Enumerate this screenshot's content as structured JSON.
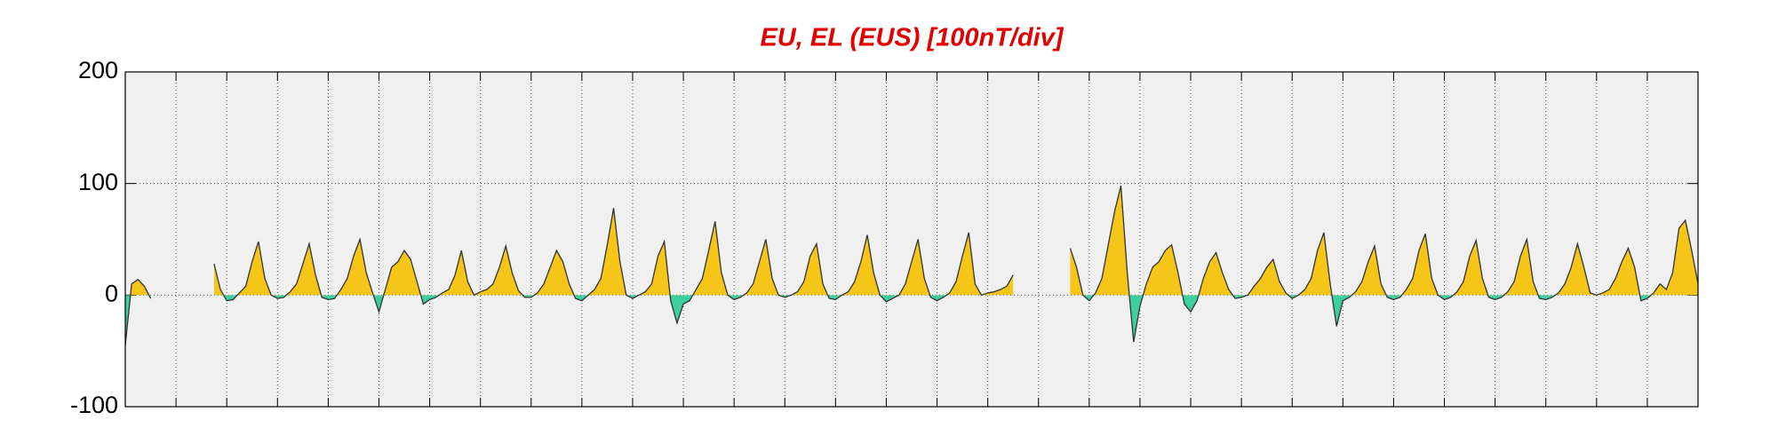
{
  "chart_data": {
    "type": "area-line",
    "title": "EU, EL (EUS)  [100nT/div]",
    "x": [
      0,
      0.125,
      0.25,
      0.375,
      0.5,
      0.625,
      0.75,
      0.875,
      1,
      1.125,
      1.25,
      1.375,
      1.5,
      1.625,
      1.75,
      1.875,
      2,
      2.125,
      2.25,
      2.375,
      2.5,
      2.625,
      2.75,
      2.875,
      3,
      3.125,
      3.25,
      3.375,
      3.5,
      3.625,
      3.75,
      3.875,
      4,
      4.125,
      4.25,
      4.375,
      4.5,
      4.625,
      4.75,
      4.875,
      5,
      5.125,
      5.25,
      5.375,
      5.5,
      5.625,
      5.75,
      5.875,
      6,
      6.125,
      6.25,
      6.375,
      6.5,
      6.625,
      6.75,
      6.875,
      7,
      7.125,
      7.25,
      7.375,
      7.5,
      7.625,
      7.75,
      7.875,
      8,
      8.125,
      8.25,
      8.375,
      8.5,
      8.625,
      8.75,
      8.875,
      9,
      9.125,
      9.25,
      9.375,
      9.5,
      9.625,
      9.75,
      9.875,
      10,
      10.125,
      10.25,
      10.375,
      10.5,
      10.625,
      10.75,
      10.875,
      11,
      11.125,
      11.25,
      11.375,
      11.5,
      11.625,
      11.75,
      11.875,
      12,
      12.125,
      12.25,
      12.375,
      12.5,
      12.625,
      12.75,
      12.875,
      13,
      13.125,
      13.25,
      13.375,
      13.5,
      13.625,
      13.75,
      13.875,
      14,
      14.125,
      14.25,
      14.375,
      14.5,
      14.625,
      14.75,
      14.875,
      15,
      15.125,
      15.25,
      15.375,
      15.5,
      15.625,
      15.75,
      15.875,
      16,
      16.125,
      16.25,
      16.375,
      16.5,
      16.625,
      16.75,
      16.875,
      17,
      17.125,
      17.25,
      17.375,
      17.5,
      17.625,
      17.75,
      17.875,
      18,
      18.125,
      18.25,
      18.375,
      18.5,
      18.625,
      18.75,
      18.875,
      19,
      19.125,
      19.25,
      19.375,
      19.5,
      19.625,
      19.75,
      19.875,
      20,
      20.125,
      20.25,
      20.375,
      20.5,
      20.625,
      20.75,
      20.875,
      21,
      21.125,
      21.25,
      21.375,
      21.5,
      21.625,
      21.75,
      21.875,
      22,
      22.125,
      22.25,
      22.375,
      22.5,
      22.625,
      22.75,
      22.875,
      23,
      23.125,
      23.25,
      23.375,
      23.5,
      23.625,
      23.75,
      23.875,
      24,
      24.125,
      24.25,
      24.375,
      24.5,
      24.625,
      24.75,
      24.875,
      25,
      25.125,
      25.25,
      25.375,
      25.5,
      25.625,
      25.75,
      25.875,
      26,
      26.125,
      26.25,
      26.375,
      26.5,
      26.625,
      26.75,
      26.875,
      27,
      27.125,
      27.25,
      27.375,
      27.5,
      27.625,
      27.75,
      27.875,
      28,
      28.125,
      28.25,
      28.375,
      28.5,
      28.625,
      28.75,
      28.875,
      29,
      29.125,
      29.25,
      29.375,
      29.5,
      29.625,
      29.75,
      29.875,
      30,
      30.125,
      30.25,
      30.375,
      30.5,
      30.625,
      30.75,
      30.875,
      31
    ],
    "values": [
      -45,
      10,
      14,
      8,
      -3,
      null,
      null,
      null,
      null,
      null,
      null,
      null,
      null,
      null,
      28,
      5,
      -5,
      -4,
      2,
      8,
      30,
      48,
      15,
      0,
      -3,
      -2,
      3,
      10,
      28,
      46,
      18,
      -2,
      -4,
      -3,
      5,
      15,
      35,
      50,
      20,
      2,
      -15,
      5,
      25,
      30,
      40,
      32,
      12,
      -8,
      -4,
      -2,
      2,
      5,
      18,
      40,
      12,
      0,
      3,
      5,
      10,
      25,
      44,
      20,
      4,
      -2,
      -2,
      2,
      10,
      25,
      40,
      30,
      10,
      -3,
      -5,
      0,
      5,
      15,
      45,
      78,
      30,
      0,
      -3,
      0,
      3,
      10,
      35,
      48,
      -5,
      -25,
      -8,
      -5,
      5,
      15,
      40,
      66,
      20,
      0,
      -4,
      -2,
      2,
      10,
      30,
      50,
      15,
      0,
      -2,
      0,
      3,
      12,
      35,
      46,
      10,
      -3,
      -4,
      0,
      3,
      12,
      30,
      54,
      20,
      0,
      -6,
      -3,
      0,
      10,
      30,
      50,
      15,
      -2,
      -5,
      -2,
      2,
      12,
      35,
      56,
      10,
      0,
      2,
      3,
      5,
      8,
      18,
      null,
      null,
      null,
      null,
      null,
      null,
      null,
      null,
      42,
      25,
      0,
      -5,
      2,
      15,
      45,
      75,
      98,
      20,
      -42,
      -10,
      10,
      25,
      30,
      40,
      45,
      20,
      -8,
      -15,
      -5,
      15,
      30,
      38,
      20,
      5,
      -3,
      -2,
      0,
      8,
      15,
      25,
      32,
      12,
      2,
      -3,
      0,
      5,
      15,
      40,
      56,
      10,
      -28,
      -5,
      -2,
      3,
      12,
      30,
      44,
      10,
      -2,
      -4,
      -2,
      5,
      15,
      40,
      55,
      15,
      0,
      -4,
      -2,
      3,
      12,
      35,
      49,
      15,
      -2,
      -4,
      -2,
      3,
      12,
      35,
      50,
      12,
      -3,
      -4,
      -2,
      2,
      10,
      25,
      46,
      25,
      2,
      0,
      2,
      5,
      15,
      30,
      42,
      25,
      -5,
      -3,
      2,
      10,
      5,
      20,
      60,
      67,
      40,
      10
    ],
    "color_positive": "#f5c518",
    "color_negative": "#3ecfa0",
    "line_color": "#333333",
    "xlim": [
      0,
      31
    ],
    "xticks": [
      0,
      1,
      2,
      3,
      4,
      5,
      6,
      7,
      8,
      9,
      10,
      11,
      12,
      13,
      14,
      15,
      16,
      17,
      18,
      19,
      20,
      21,
      22,
      23,
      24,
      25,
      26,
      27,
      28,
      29,
      30,
      31
    ],
    "ylim": [
      -100,
      200
    ],
    "yticks": [
      -100,
      0,
      100,
      200
    ],
    "grid": true
  }
}
